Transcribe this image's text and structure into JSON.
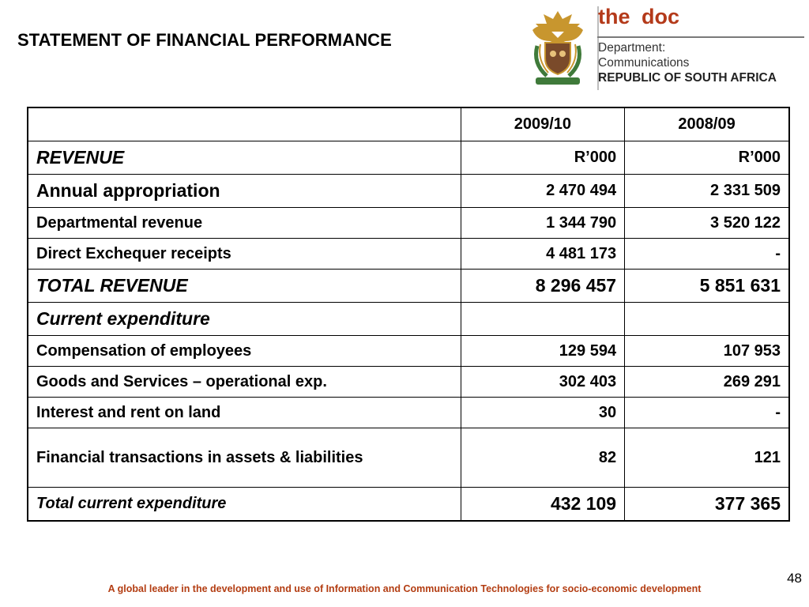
{
  "slide": {
    "title": "STATEMENT OF FINANCIAL PERFORMANCE",
    "page_number": "48",
    "footer": "A global leader in the development and use of Information and Communication Technologies for socio-economic development"
  },
  "logo": {
    "brand_the": "the",
    "brand_doc": "doc",
    "dept_line1": "Department:",
    "dept_line2": "Communications",
    "country": "REPUBLIC OF SOUTH AFRICA",
    "crest_motto": "!KE E: /XARRA //KE",
    "colors": {
      "brand": "#b43a1a",
      "crest_gold": "#c8962e",
      "crest_green": "#3f7a3a"
    }
  },
  "table": {
    "header": {
      "label": "",
      "col1": "2009/10",
      "col2": "2008/09"
    },
    "rows": [
      {
        "label": "REVENUE",
        "v1": "R’000",
        "v2": "R’000"
      },
      {
        "label": "Annual appropriation",
        "v1": "2 470 494",
        "v2": "2 331 509"
      },
      {
        "label": "Departmental revenue",
        "v1": "1 344 790",
        "v2": "3 520 122"
      },
      {
        "label": "Direct Exchequer receipts",
        "v1": "4 481 173",
        "v2": "-"
      },
      {
        "label": "TOTAL REVENUE",
        "v1": "8 296 457",
        "v2": "5 851 631"
      },
      {
        "label": "Current expenditure",
        "v1": "",
        "v2": ""
      },
      {
        "label": "Compensation of employees",
        "v1": "129 594",
        "v2": "107 953"
      },
      {
        "label": "Goods and Services – operational exp.",
        "v1": "302 403",
        "v2": "269 291"
      },
      {
        "label": "Interest and rent on land",
        "v1": "30",
        "v2": "-"
      },
      {
        "label": "Financial transactions in assets & liabilities",
        "v1": "82",
        "v2": "121"
      },
      {
        "label": "Total current expenditure",
        "v1": "432 109",
        "v2": "377 365"
      }
    ]
  }
}
